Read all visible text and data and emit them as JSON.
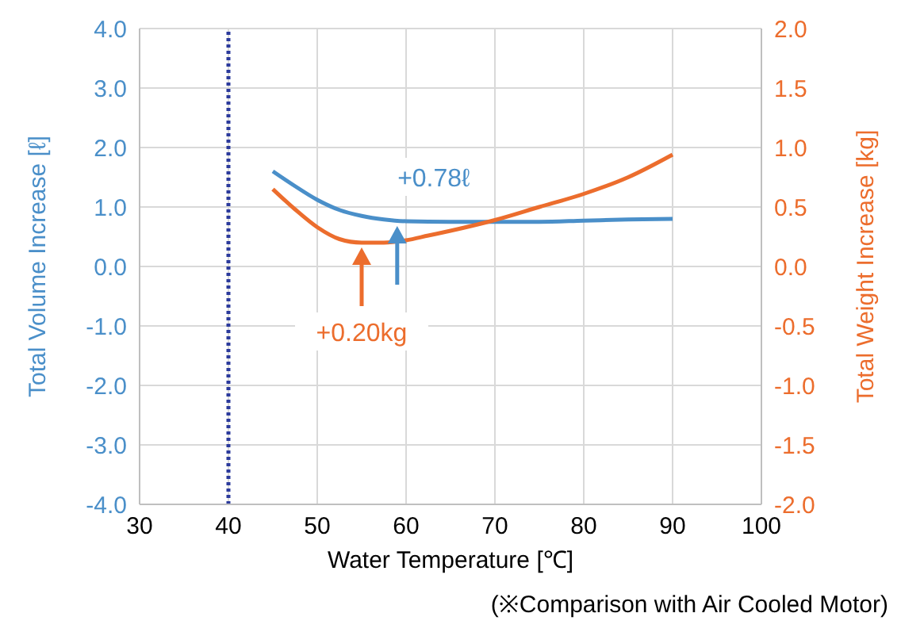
{
  "chart_data": {
    "type": "line",
    "xlabel": "Water Temperature [℃]",
    "ylabel": "Total Volume Increase [ℓ]",
    "y2label": "Total Weight Increase [kg]",
    "xlim": [
      30,
      100
    ],
    "xticks": [
      30,
      40,
      50,
      60,
      70,
      80,
      90,
      100
    ],
    "ylim": [
      -4,
      4
    ],
    "yticks": [
      {
        "value": -4,
        "label": "-4.0"
      },
      {
        "value": -3,
        "label": "-3.0"
      },
      {
        "value": -2,
        "label": "-2.0"
      },
      {
        "value": -1,
        "label": "-1.0"
      },
      {
        "value": 0,
        "label": "0.0"
      },
      {
        "value": 1,
        "label": "1.0"
      },
      {
        "value": 2,
        "label": "2.0"
      },
      {
        "value": 3,
        "label": "3.0"
      },
      {
        "value": 4,
        "label": "4.0"
      }
    ],
    "y2lim": [
      -2,
      2
    ],
    "y2ticks": [
      {
        "value": -2,
        "label": "-2.0"
      },
      {
        "value": -1.5,
        "label": "-1.5"
      },
      {
        "value": -1,
        "label": "-1.0"
      },
      {
        "value": -0.5,
        "label": "-0.5"
      },
      {
        "value": 0,
        "label": "0.0"
      },
      {
        "value": 0.5,
        "label": "0.5"
      },
      {
        "value": 1,
        "label": "1.0"
      },
      {
        "value": 1.5,
        "label": "1.5"
      },
      {
        "value": 2,
        "label": "2.0"
      }
    ],
    "series": [
      {
        "color": "#4a8fc9",
        "x": [
          45,
          47.5,
          50,
          52.5,
          55,
          57.5,
          60,
          65,
          70,
          75,
          80,
          85,
          90
        ],
        "values": [
          1.6,
          1.35,
          1.12,
          0.95,
          0.85,
          0.79,
          0.76,
          0.75,
          0.75,
          0.75,
          0.77,
          0.79,
          0.8
        ]
      },
      {
        "color": "#ec6d2d",
        "axis": "y2",
        "x": [
          45,
          47.5,
          50,
          52.5,
          55,
          57.5,
          60,
          62.5,
          65,
          70,
          75,
          80,
          85,
          90
        ],
        "values": [
          0.65,
          0.48,
          0.33,
          0.23,
          0.2,
          0.2,
          0.22,
          0.26,
          0.3,
          0.39,
          0.5,
          0.61,
          0.75,
          0.94
        ]
      }
    ],
    "ref_lines": [
      {
        "axis": "x",
        "value": 40,
        "color": "#2b3a9c",
        "line_style": "dotted"
      }
    ],
    "annotations": [
      {
        "text": "+0.78ℓ",
        "x": 59,
        "y": 0.76
      },
      {
        "text": "+0.20kg",
        "x": 55,
        "y": 0.2
      },
      "(※Comparison with Air Cooled Motor)"
    ],
    "grid": true,
    "marker": "none",
    "line_style": "solid"
  }
}
